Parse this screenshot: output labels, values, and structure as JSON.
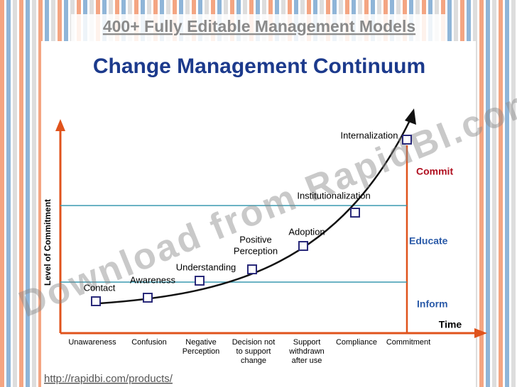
{
  "header": {
    "banner": "400+ Fully Editable Management Models",
    "title": "Change Management Continuum"
  },
  "axes": {
    "y_label": "Level of Commitment",
    "x_label": "Time"
  },
  "zones": [
    "Commit",
    "Educate",
    "Inform"
  ],
  "stages": [
    [
      "Contact"
    ],
    [
      "Awareness"
    ],
    [
      "Understanding"
    ],
    [
      "Positive",
      "Perception"
    ],
    [
      "Adoption"
    ],
    [
      "Institutionalization"
    ],
    [
      "Internalization"
    ]
  ],
  "x_labels": [
    [
      "Unawareness"
    ],
    [
      "Confusion"
    ],
    [
      "Negative",
      "Perception"
    ],
    [
      "Decision not",
      "to support",
      "change"
    ],
    [
      "Support",
      "withdrawn",
      "after use"
    ],
    [
      "Compliance"
    ],
    [
      "Commitment"
    ]
  ],
  "watermark": "Download from RapidBI.com",
  "footer": {
    "url": "http://rapidbi.com/products/"
  }
}
